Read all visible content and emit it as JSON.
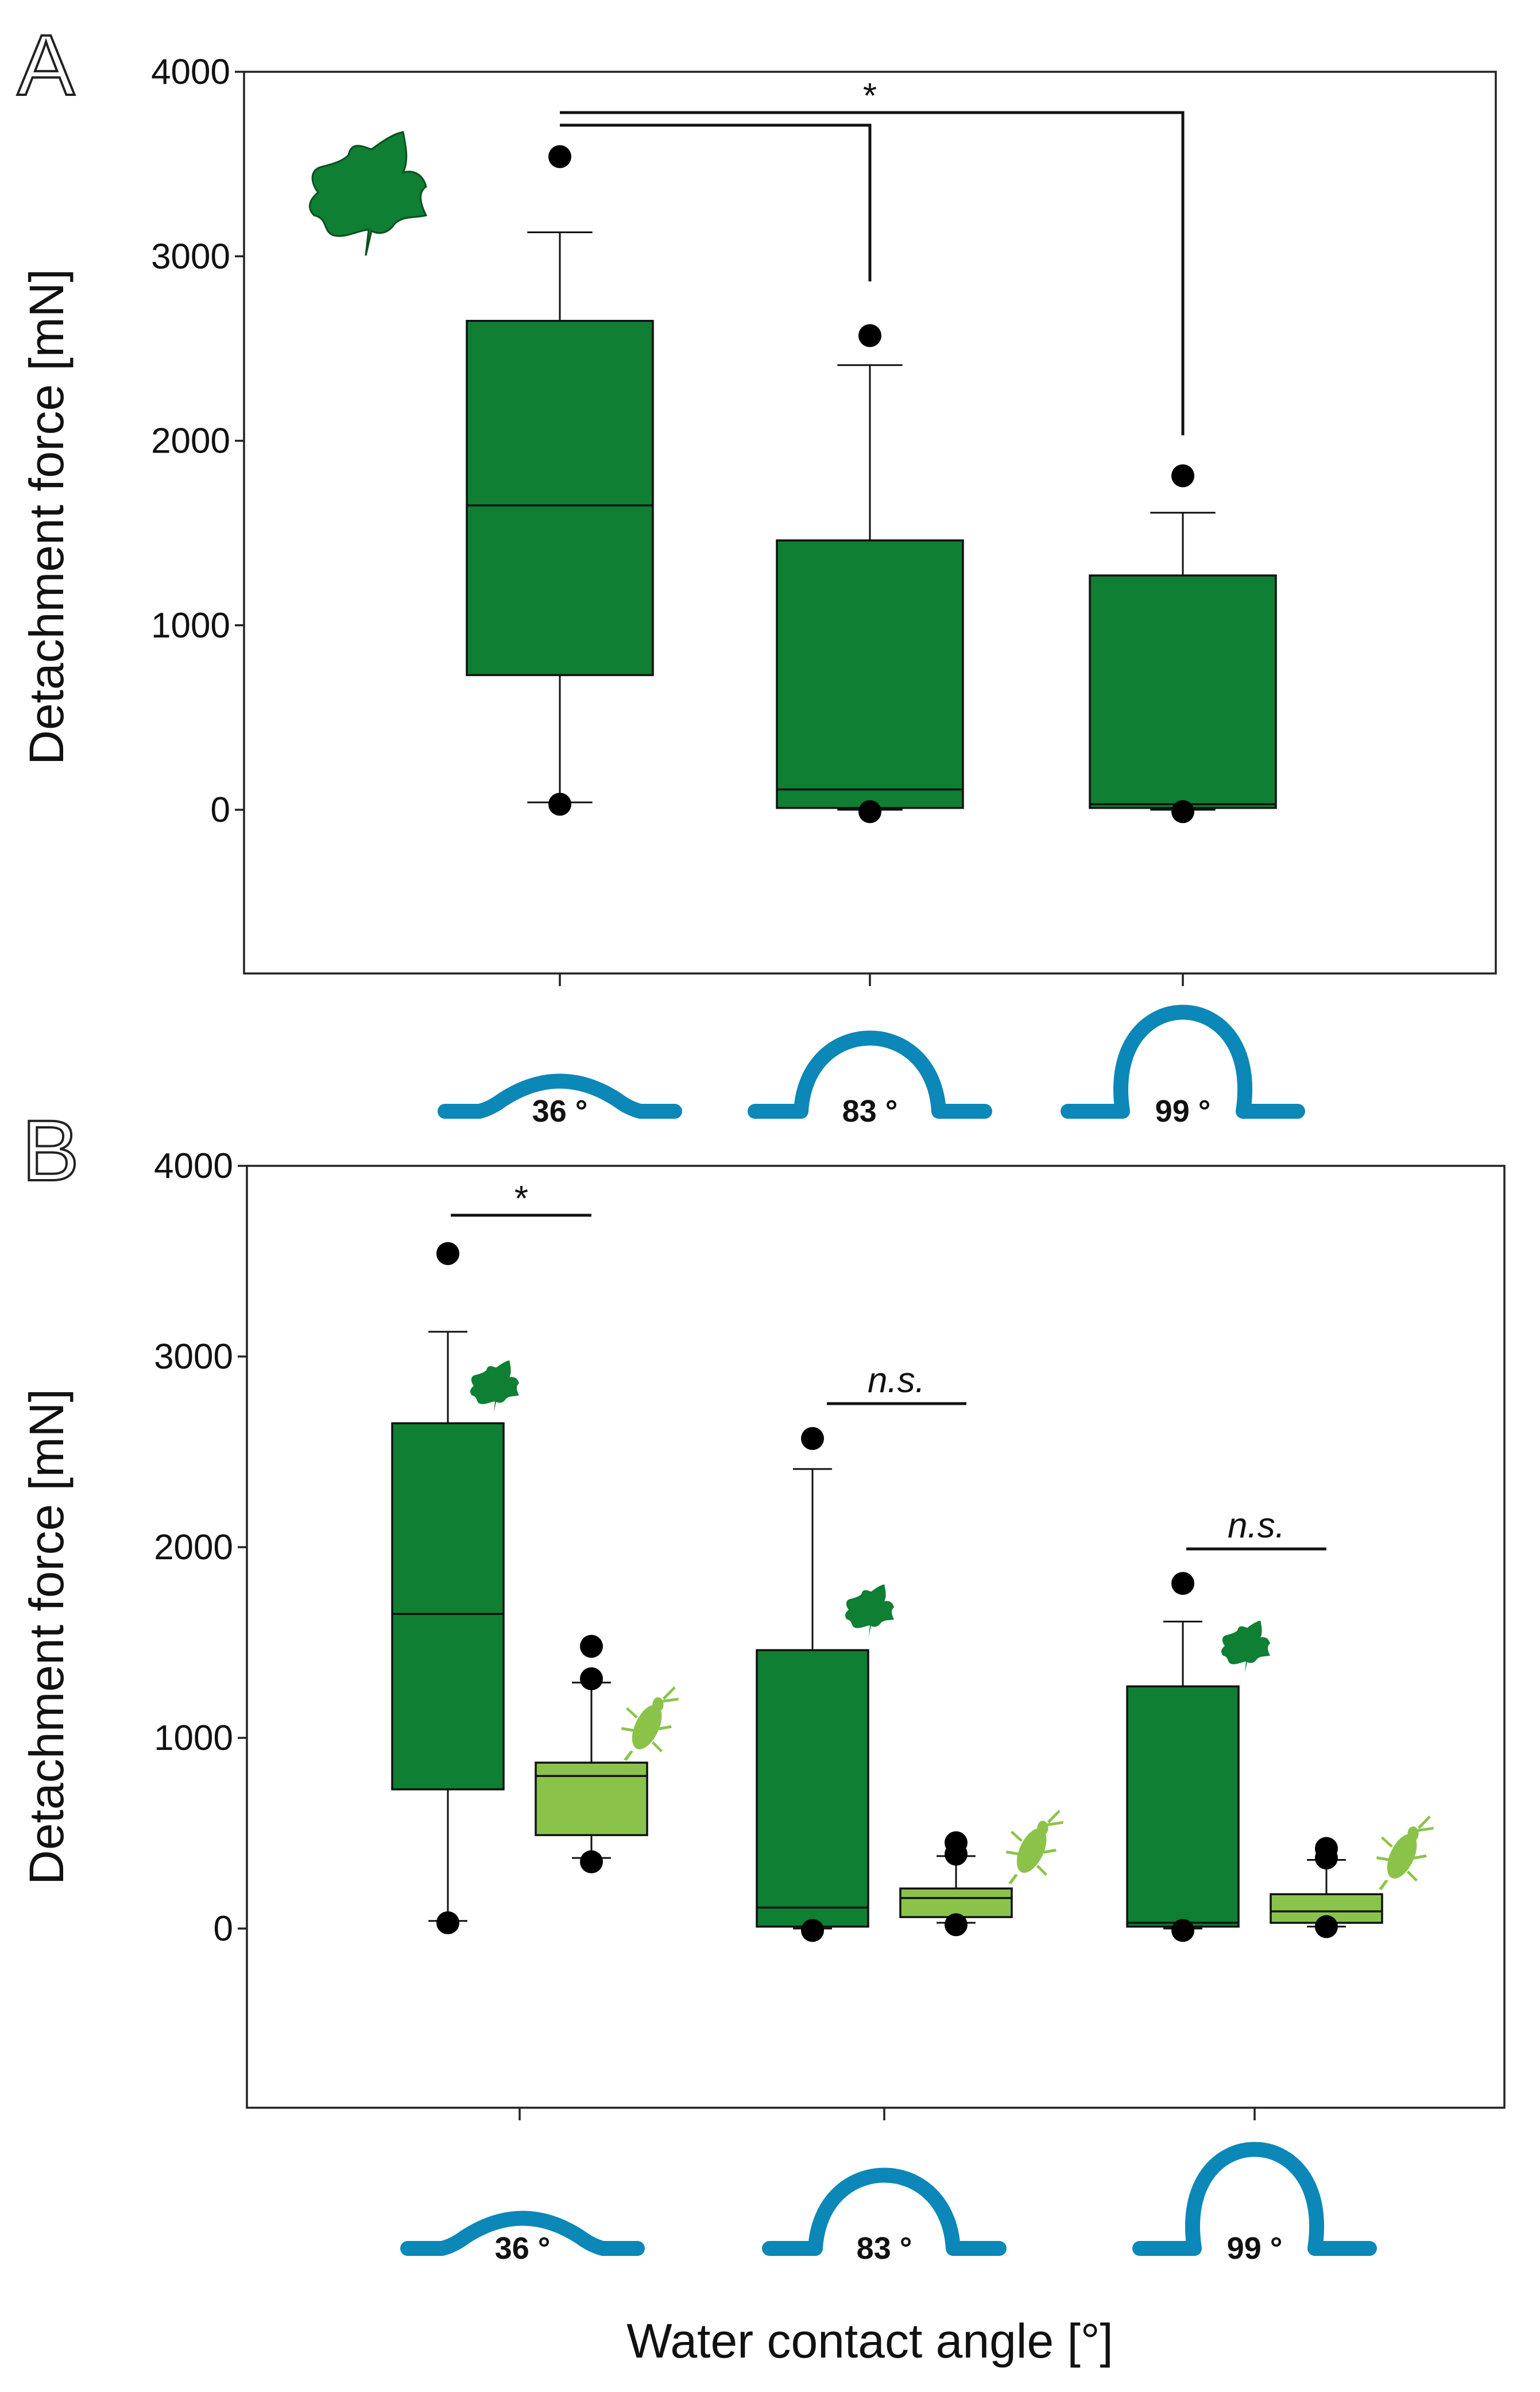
{
  "colors": {
    "leaf_box": "#0e7f33",
    "insect_box": "#8bc34a",
    "droplet": "#0b87b8",
    "axis": "#222222"
  },
  "chart_data": [
    {
      "panel": "A",
      "type": "box",
      "ylabel": "Detachment force [mN]",
      "xlabel": "",
      "ylim": [
        -900,
        4000
      ],
      "yticks": [
        0,
        1000,
        2000,
        3000,
        4000
      ],
      "ytick_labels": [
        "0",
        "1000",
        "2000",
        "3000",
        "4000"
      ],
      "categories": [
        "36 °",
        "83 °",
        "99 °"
      ],
      "legend_icons": [
        {
          "name": "ivy-leaf",
          "position": "top-left"
        }
      ],
      "groups": [
        {
          "angle_label": "36 °",
          "series": [
            {
              "name": "leaf",
              "color": "#0e7f33",
              "q1": 730,
              "median": 1650,
              "q3": 2650,
              "whisker_low": 40,
              "whisker_high": 3130,
              "outliers": [
                3540,
                30
              ]
            }
          ]
        },
        {
          "angle_label": "83 °",
          "series": [
            {
              "name": "leaf",
              "color": "#0e7f33",
              "q1": 10,
              "median": 110,
              "q3": 1460,
              "whisker_low": 0,
              "whisker_high": 2410,
              "outliers": [
                2570,
                -10
              ]
            }
          ]
        },
        {
          "angle_label": "99 °",
          "series": [
            {
              "name": "leaf",
              "color": "#0e7f33",
              "q1": 10,
              "median": 30,
              "q3": 1270,
              "whisker_low": 0,
              "whisker_high": 1610,
              "outliers": [
                1810,
                -10
              ]
            }
          ]
        }
      ],
      "annotations": [
        {
          "text": "*",
          "from_group": 0,
          "to_group": 1,
          "label_shown": false
        },
        {
          "text": "*",
          "from_group": 0,
          "to_group": 2,
          "label_shown": true
        }
      ]
    },
    {
      "panel": "B",
      "type": "box",
      "ylabel": "Detachment force [mN]",
      "xlabel": "Water contact angle [°]",
      "ylim": [
        -900,
        4000
      ],
      "yticks": [
        0,
        1000,
        2000,
        3000,
        4000
      ],
      "ytick_labels": [
        "0",
        "1000",
        "2000",
        "3000",
        "4000"
      ],
      "categories": [
        "36 °",
        "83 °",
        "99 °"
      ],
      "groups": [
        {
          "angle_label": "36 °",
          "series": [
            {
              "name": "leaf",
              "color": "#0e7f33",
              "q1": 730,
              "median": 1650,
              "q3": 2650,
              "whisker_low": 40,
              "whisker_high": 3130,
              "outliers": [
                3540,
                30
              ]
            },
            {
              "name": "insect",
              "color": "#8bc34a",
              "q1": 490,
              "median": 800,
              "q3": 870,
              "whisker_low": 370,
              "whisker_high": 1290,
              "outliers": [
                1480,
                1310,
                350
              ]
            }
          ],
          "annotation": {
            "text": "*",
            "style": "bold"
          }
        },
        {
          "angle_label": "83 °",
          "series": [
            {
              "name": "leaf",
              "color": "#0e7f33",
              "q1": 10,
              "median": 110,
              "q3": 1460,
              "whisker_low": 0,
              "whisker_high": 2410,
              "outliers": [
                2570,
                -10
              ]
            },
            {
              "name": "insect",
              "color": "#8bc34a",
              "q1": 60,
              "median": 160,
              "q3": 210,
              "whisker_low": 30,
              "whisker_high": 380,
              "outliers": [
                450,
                390,
                20
              ]
            }
          ],
          "annotation": {
            "text": "n.s.",
            "style": "italic"
          }
        },
        {
          "angle_label": "99 °",
          "series": [
            {
              "name": "leaf",
              "color": "#0e7f33",
              "q1": 10,
              "median": 30,
              "q3": 1270,
              "whisker_low": 0,
              "whisker_high": 1610,
              "outliers": [
                1810,
                -10
              ]
            },
            {
              "name": "insect",
              "color": "#8bc34a",
              "q1": 30,
              "median": 90,
              "q3": 180,
              "whisker_low": 10,
              "whisker_high": 360,
              "outliers": [
                420,
                370,
                10
              ]
            }
          ],
          "annotation": {
            "text": "n.s.",
            "style": "italic"
          }
        }
      ]
    }
  ]
}
